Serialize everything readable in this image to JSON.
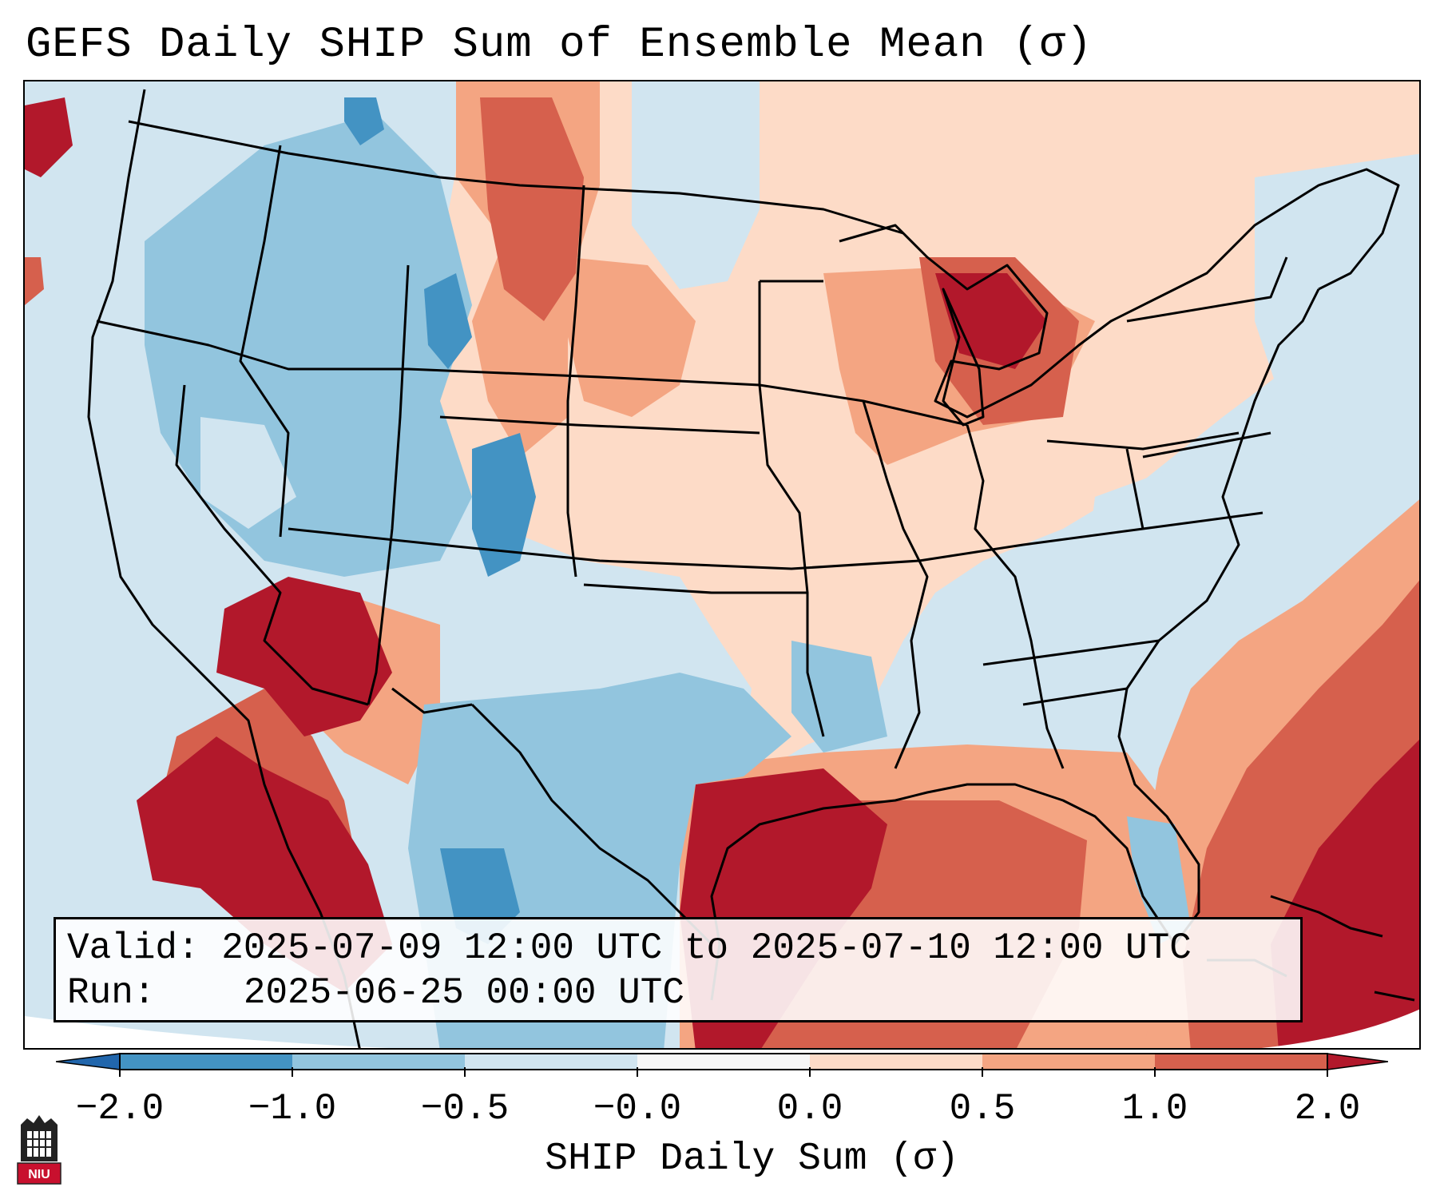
{
  "title": "GEFS Daily SHIP Sum of Ensemble Mean (σ)",
  "info": {
    "valid_label": "Valid:",
    "valid_value": "2025-07-09 12:00 UTC to 2025-07-10 12:00 UTC",
    "run_label": "Run:",
    "run_value": "2025-06-25 00:00 UTC"
  },
  "colorbar": {
    "label": "SHIP Daily Sum (σ)",
    "ticks": [
      "−2.0",
      "−1.0",
      "−0.5",
      "−0.0",
      "0.0",
      "0.5",
      "1.0",
      "2.0"
    ],
    "colors": [
      "#4393c3",
      "#92c5de",
      "#d1e5f0",
      "#ffffff",
      "#fddbc7",
      "#f4a582",
      "#d6604d",
      "#b2182b"
    ],
    "extend": "both"
  },
  "logo": {
    "text": "NIU"
  },
  "map": {
    "region": "Continental United States, Gulf of Mexico, western Atlantic",
    "color_fill": {
      "deep_blue": "#4393c3",
      "mid_blue": "#92c5de",
      "light_blue": "#d1e5f0",
      "white": "#ffffff",
      "light_red": "#fddbc7",
      "salmon": "#f4a582",
      "red": "#d6604d",
      "dark_red": "#b2182b"
    }
  }
}
